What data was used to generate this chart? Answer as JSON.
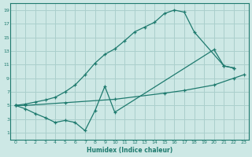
{
  "background_color": "#cde8e5",
  "grid_color": "#aacfcc",
  "line_color": "#1e7a6e",
  "xlabel": "Humidex (Indice chaleur)",
  "xlim": [
    -0.5,
    23.5
  ],
  "ylim": [
    0,
    20
  ],
  "xticks": [
    0,
    1,
    2,
    3,
    4,
    5,
    6,
    7,
    8,
    9,
    10,
    11,
    12,
    13,
    14,
    15,
    16,
    17,
    18,
    19,
    20,
    21,
    22,
    23
  ],
  "yticks": [
    1,
    3,
    5,
    7,
    9,
    11,
    13,
    15,
    17,
    19
  ],
  "line1_x": [
    0,
    1,
    2,
    3,
    4,
    5,
    6,
    7,
    8,
    9,
    10,
    11,
    12,
    13,
    14,
    15,
    16,
    17,
    18,
    21,
    22
  ],
  "line1_y": [
    5,
    5.2,
    5.5,
    5.8,
    6.2,
    7.0,
    8.0,
    9.5,
    11.2,
    12.5,
    13.3,
    14.5,
    15.8,
    16.5,
    17.2,
    18.5,
    19.0,
    18.7,
    15.8,
    10.8,
    10.5
  ],
  "line2_x": [
    0,
    1,
    2,
    3,
    4,
    5,
    6,
    7,
    8,
    9,
    10,
    20,
    21,
    22
  ],
  "line2_y": [
    5,
    4.5,
    3.8,
    3.2,
    2.5,
    2.8,
    2.5,
    1.3,
    4.2,
    7.8,
    4.0,
    13.2,
    10.8,
    10.5
  ],
  "line3_x": [
    0,
    1,
    5,
    10,
    15,
    17,
    20,
    22,
    23
  ],
  "line3_y": [
    5,
    5.0,
    5.4,
    5.9,
    6.8,
    7.2,
    8.0,
    9.0,
    9.5
  ]
}
